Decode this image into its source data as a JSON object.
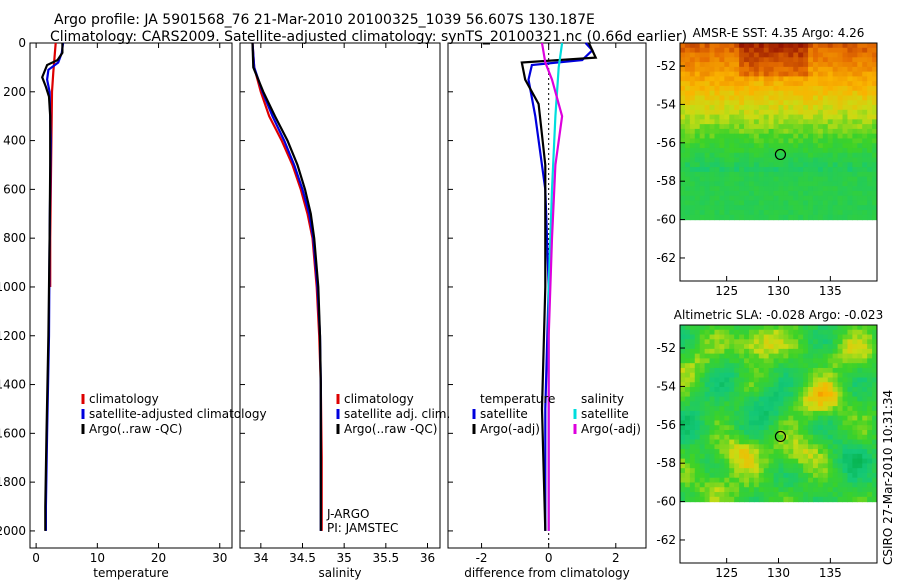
{
  "header": {
    "line1": "Argo profile: JA 5901568_76 21-Mar-2010 20100325_1039 56.607S 130.187E",
    "line2": "Climatology: CARS2009. Satellite-adjusted climatology: synTS_20100321.nc (0.66d earlier)"
  },
  "colors": {
    "climatology": "#dd0000",
    "satellite": "#0000dd",
    "argo": "#000000",
    "salinity_sat": "#00dddd",
    "salinity_argo": "#dd00dd"
  },
  "chart_data": [
    {
      "type": "line",
      "id": "temperature",
      "xlabel": "temperature",
      "xlim": [
        -1,
        32
      ],
      "ylim": [
        0,
        2070
      ],
      "xticks": [
        0,
        10,
        20,
        30
      ],
      "yticks": [
        0,
        200,
        400,
        600,
        800,
        1000,
        1200,
        1400,
        1600,
        1800,
        2000
      ],
      "legend": [
        "climatology",
        "satellite-adjusted climatology",
        "Argo(..raw -QC)"
      ],
      "series": [
        {
          "name": "climatology",
          "color": "#dd0000",
          "points": [
            [
              3.2,
              0
            ],
            [
              3.0,
              60
            ],
            [
              2.8,
              120
            ],
            [
              2.6,
              200
            ],
            [
              2.5,
              400
            ],
            [
              2.4,
              600
            ],
            [
              2.3,
              800
            ],
            [
              2.3,
              1000
            ]
          ]
        },
        {
          "name": "satellite-adjusted climatology",
          "color": "#0000dd",
          "points": [
            [
              4.4,
              0
            ],
            [
              4.2,
              40
            ],
            [
              3.6,
              80
            ],
            [
              2.0,
              110
            ],
            [
              1.8,
              150
            ],
            [
              2.2,
              200
            ],
            [
              2.4,
              400
            ],
            [
              2.2,
              800
            ],
            [
              2.1,
              1200
            ],
            [
              1.8,
              1600
            ],
            [
              1.6,
              1900
            ],
            [
              1.6,
              2000
            ]
          ]
        },
        {
          "name": "Argo(..raw -QC)",
          "color": "#000000",
          "points": [
            [
              4.3,
              0
            ],
            [
              4.3,
              40
            ],
            [
              3.5,
              70
            ],
            [
              1.8,
              90
            ],
            [
              1.0,
              140
            ],
            [
              1.6,
              180
            ],
            [
              2.1,
              220
            ],
            [
              2.3,
              300
            ],
            [
              2.3,
              500
            ],
            [
              2.2,
              800
            ],
            [
              2.0,
              1200
            ],
            [
              1.7,
              1600
            ],
            [
              1.5,
              1900
            ],
            [
              1.5,
              2000
            ]
          ]
        }
      ]
    },
    {
      "type": "line",
      "id": "salinity",
      "xlabel": "salinity",
      "xlim": [
        33.75,
        36.15
      ],
      "ylim": [
        0,
        2070
      ],
      "xticks": [
        34,
        34.5,
        35,
        35.5,
        36
      ],
      "xticklabels": [
        "34",
        "34.5",
        "35",
        "35.5",
        "36"
      ],
      "legend": [
        "climatology",
        "satellite adj. clim.",
        "Argo(..raw -QC)"
      ],
      "annotation": [
        "J-ARGO",
        "PI: JAMSTEC"
      ],
      "series": [
        {
          "name": "climatology",
          "color": "#dd0000",
          "points": [
            [
              33.9,
              0
            ],
            [
              33.92,
              100
            ],
            [
              34.0,
              200
            ],
            [
              34.1,
              300
            ],
            [
              34.25,
              400
            ],
            [
              34.38,
              500
            ],
            [
              34.48,
              600
            ],
            [
              34.56,
              700
            ],
            [
              34.62,
              800
            ],
            [
              34.67,
              1000
            ],
            [
              34.7,
              1200
            ],
            [
              34.72,
              1400
            ],
            [
              34.73,
              1700
            ],
            [
              34.73,
              2000
            ]
          ]
        },
        {
          "name": "satellite adj. clim.",
          "color": "#0000dd",
          "points": [
            [
              33.9,
              0
            ],
            [
              33.92,
              100
            ],
            [
              34.02,
              200
            ],
            [
              34.14,
              300
            ],
            [
              34.28,
              400
            ],
            [
              34.4,
              500
            ],
            [
              34.5,
              600
            ],
            [
              34.58,
              700
            ],
            [
              34.63,
              800
            ],
            [
              34.68,
              1000
            ],
            [
              34.71,
              1200
            ],
            [
              34.72,
              1400
            ],
            [
              34.72,
              1700
            ],
            [
              34.72,
              2000
            ]
          ]
        },
        {
          "name": "Argo(..raw -QC)",
          "color": "#000000",
          "points": [
            [
              33.9,
              0
            ],
            [
              33.91,
              100
            ],
            [
              34.03,
              200
            ],
            [
              34.17,
              300
            ],
            [
              34.32,
              400
            ],
            [
              34.44,
              500
            ],
            [
              34.53,
              600
            ],
            [
              34.6,
              700
            ],
            [
              34.64,
              800
            ],
            [
              34.69,
              1000
            ],
            [
              34.71,
              1200
            ],
            [
              34.72,
              1400
            ],
            [
              34.72,
              1700
            ],
            [
              34.72,
              2000
            ]
          ]
        }
      ]
    },
    {
      "type": "line",
      "id": "difference",
      "xlabel": "difference from climatology",
      "xlim": [
        -3.0,
        2.9
      ],
      "ylim": [
        0,
        2070
      ],
      "xticks": [
        -2,
        0,
        2
      ],
      "legend_left": [
        "temperature",
        "satellite",
        "Argo(-adj)"
      ],
      "legend_right": [
        "salinity",
        "satellite",
        "Argo(-adj)"
      ],
      "series": [
        {
          "name": "temperature satellite",
          "color": "#0000dd",
          "points": [
            [
              1.1,
              0
            ],
            [
              1.3,
              30
            ],
            [
              1.0,
              70
            ],
            [
              -0.5,
              90
            ],
            [
              -0.6,
              150
            ],
            [
              -0.4,
              300
            ],
            [
              -0.1,
              600
            ],
            [
              0.0,
              1000
            ],
            [
              -0.1,
              1500
            ],
            [
              -0.1,
              2000
            ]
          ]
        },
        {
          "name": "temperature Argo(-adj)",
          "color": "#000000",
          "points": [
            [
              1.2,
              0
            ],
            [
              1.4,
              60
            ],
            [
              -0.8,
              80
            ],
            [
              -0.7,
              150
            ],
            [
              -0.3,
              250
            ],
            [
              -0.1,
              500
            ],
            [
              -0.1,
              1000
            ],
            [
              -0.2,
              1500
            ],
            [
              -0.1,
              2000
            ]
          ]
        },
        {
          "name": "salinity satellite",
          "color": "#00dddd",
          "points": [
            [
              0.4,
              0
            ],
            [
              0.3,
              100
            ],
            [
              0.2,
              300
            ],
            [
              0.1,
              600
            ],
            [
              0.0,
              1000
            ],
            [
              0.0,
              2000
            ]
          ]
        },
        {
          "name": "salinity Argo(-adj)",
          "color": "#dd00dd",
          "points": [
            [
              -0.2,
              0
            ],
            [
              -0.1,
              80
            ],
            [
              0.1,
              150
            ],
            [
              0.4,
              300
            ],
            [
              0.2,
              500
            ],
            [
              0.1,
              800
            ],
            [
              0.0,
              1200
            ],
            [
              0.0,
              2000
            ]
          ]
        }
      ]
    },
    {
      "type": "heatmap",
      "id": "sst",
      "title": "AMSR-E SST: 4.35  Argo: 4.26",
      "xlim": [
        120.5,
        139.5
      ],
      "ylim": [
        -63.2,
        -50.8
      ],
      "xticks": [
        125,
        130,
        135
      ],
      "yticks": [
        -52,
        -54,
        -56,
        -58,
        -60,
        -62
      ],
      "data_extent_lat": [
        -60,
        -50.8
      ],
      "marker": [
        130.187,
        -56.607
      ]
    },
    {
      "type": "heatmap",
      "id": "sla",
      "title": "Altimetric SLA: -0.028  Argo: -0.023",
      "xlim": [
        120.5,
        139.5
      ],
      "ylim": [
        -63.2,
        -50.8
      ],
      "xticks": [
        125,
        130,
        135
      ],
      "yticks": [
        -52,
        -54,
        -56,
        -58,
        -60,
        -62
      ],
      "data_extent_lat": [
        -60,
        -50.8
      ],
      "marker": [
        130.187,
        -56.607
      ]
    }
  ],
  "stamp": "CSIRO 27-Mar-2010 10:31:34"
}
